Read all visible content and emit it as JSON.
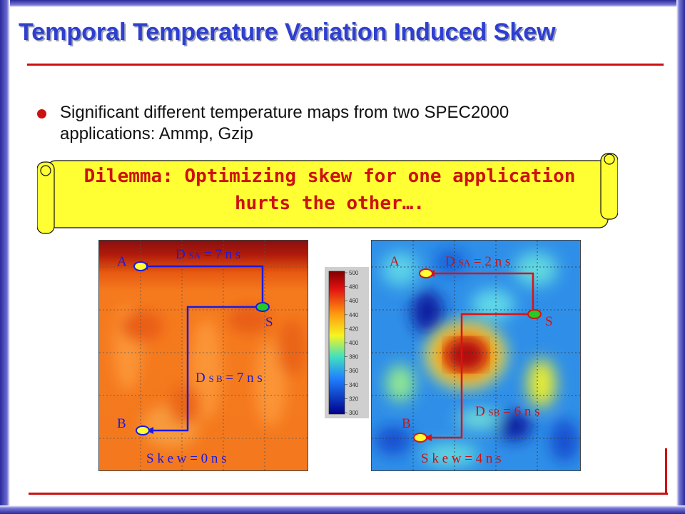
{
  "slide": {
    "title": "Temporal Temperature Variation Induced Skew",
    "bullet": "Significant different temperature maps from two SPEC2000 applications: Ammp, Gzip",
    "callout": "Dilemma: Optimizing skew for one application hurts the other…."
  },
  "colors": {
    "accent": "#cc1111",
    "title": "#2e3fd0",
    "callout_bg": "#ffff33"
  },
  "colorbar": {
    "ticks": [
      "500",
      "480",
      "460",
      "440",
      "420",
      "400",
      "380",
      "360",
      "340",
      "320",
      "300"
    ]
  },
  "left_map": {
    "A": "A",
    "B": "B",
    "S": "S",
    "dsa_prefix": "D",
    "dsa_sub": "SA",
    "dsa_value": "= 7 n s",
    "dsb_prefix": "D",
    "dsb_sub": "S B",
    "dsb_value": "= 7 n s",
    "skew": "S k e w  =  0 n s"
  },
  "right_map": {
    "A": "A",
    "B": "B",
    "S": "S",
    "dsa_prefix": "D",
    "dsa_sub": "SA",
    "dsa_value": "= 2 n s",
    "dsb_prefix": "D",
    "dsb_sub": "SB",
    "dsb_value": "= 6 n s",
    "skew": "S k e w  =  4 n s"
  }
}
